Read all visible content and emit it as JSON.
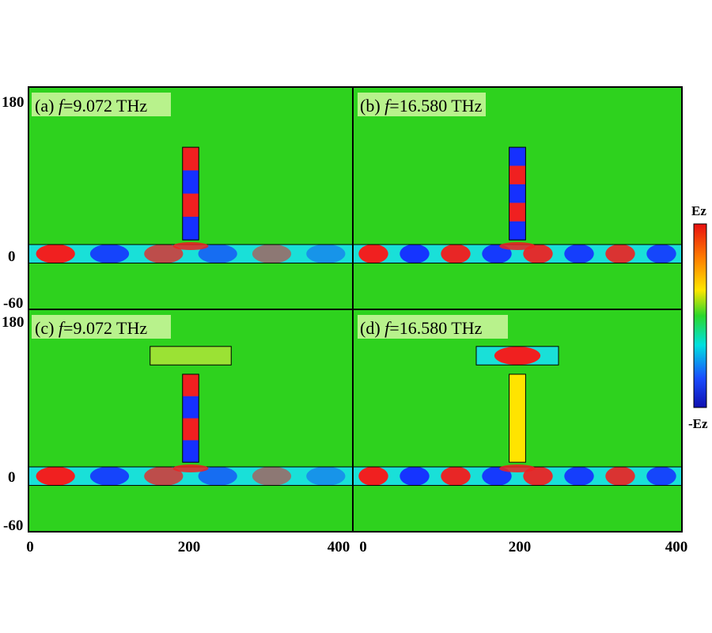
{
  "chart_data": [
    {
      "type": "heatmap",
      "panel": "(a)",
      "label_prefix": "(a) ",
      "label_var": "f",
      "label_value": "=9.072 THz",
      "structure": "waveguide-with-vertical-stub",
      "stub_pattern": [
        "pos",
        "neg",
        "pos",
        "neg"
      ],
      "guide_pattern": [
        "pos",
        "neg",
        "pos",
        "neg",
        "pos",
        "neg"
      ],
      "x_ticks": [
        "0",
        "200",
        "400"
      ],
      "y_ticks": [
        "180",
        "0",
        "-60"
      ],
      "xlim": [
        0,
        400
      ],
      "ylim": [
        -60,
        180
      ]
    },
    {
      "type": "heatmap",
      "panel": "(b)",
      "label_prefix": "(b) ",
      "label_var": "f",
      "label_value": "=16.580 THz",
      "structure": "waveguide-with-vertical-stub",
      "stub_pattern": [
        "neg",
        "pos",
        "neg",
        "pos",
        "neg"
      ],
      "guide_pattern": [
        "pos",
        "neg",
        "pos",
        "neg",
        "pos",
        "neg",
        "pos",
        "neg"
      ],
      "xlim": [
        0,
        400
      ],
      "ylim": [
        -60,
        180
      ]
    },
    {
      "type": "heatmap",
      "panel": "(c)",
      "label_prefix": "(c) ",
      "label_var": "f",
      "label_value": "=9.072 THz",
      "structure": "waveguide-with-T-stub",
      "stub_pattern": [
        "pos",
        "neg",
        "pos",
        "neg"
      ],
      "guide_pattern": [
        "pos",
        "neg",
        "pos",
        "neg",
        "pos",
        "neg"
      ],
      "x_ticks": [
        "0",
        "200",
        "400"
      ],
      "y_ticks": [
        "180",
        "0",
        "-60"
      ],
      "xlim": [
        0,
        400
      ],
      "ylim": [
        -60,
        180
      ]
    },
    {
      "type": "heatmap",
      "panel": "(d)",
      "label_prefix": "(d) ",
      "label_var": "f",
      "label_value": "=16.580 THz",
      "structure": "waveguide-with-detached-bar",
      "stub_pattern": [
        "neutral"
      ],
      "guide_pattern": [
        "pos",
        "neg",
        "pos",
        "neg",
        "pos",
        "neg",
        "pos",
        "neg"
      ],
      "x_ticks": [
        "0",
        "200",
        "400"
      ],
      "xlim": [
        0,
        400
      ],
      "ylim": [
        -60,
        180
      ]
    }
  ],
  "colorbar": {
    "top_label": "Ez",
    "bottom_label": "-Ez",
    "colors": [
      "#e81010",
      "#ff7a00",
      "#ffe600",
      "#2bd82b",
      "#00e0e0",
      "#1a4dff",
      "#1010b0"
    ]
  },
  "colors": {
    "background": "#2ed21e",
    "positive": "#f02020",
    "negative": "#1530ff",
    "cyan": "#19e0d8",
    "yellow": "#ffe400"
  }
}
